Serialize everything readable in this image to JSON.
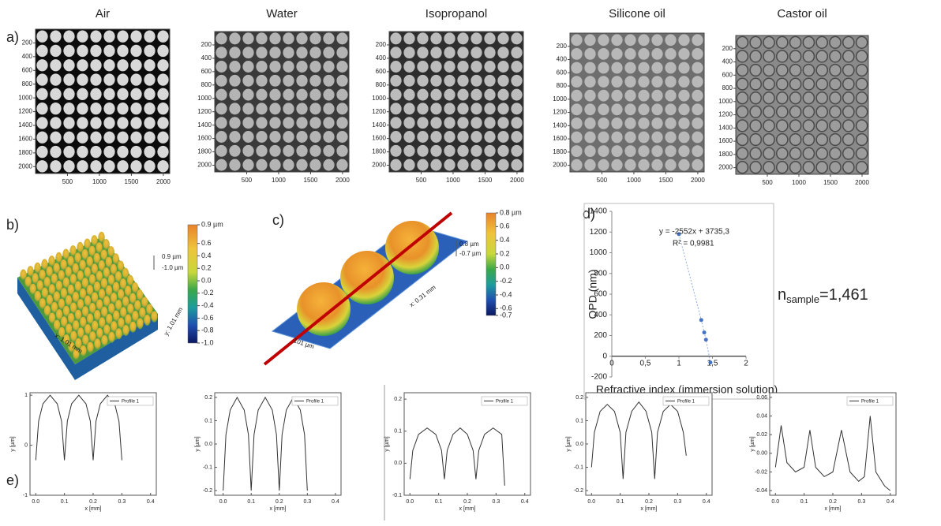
{
  "figure": {
    "panel_labels": [
      "a)",
      "b)",
      "c)",
      "d)",
      "e)"
    ]
  },
  "chart_data": [
    {
      "type": "image",
      "title": "Air",
      "background": "#0c0c0c",
      "dot": "#d8d8d8",
      "xlim": [
        0,
        2100
      ],
      "ylim": [
        0,
        2100
      ],
      "invert_y": true,
      "xticks": [
        500,
        1000,
        1500,
        2000
      ],
      "yticks": [
        200,
        400,
        600,
        800,
        1000,
        1200,
        1400,
        1600,
        1800,
        2000
      ]
    },
    {
      "type": "image",
      "title": "Water",
      "background": "#3a3a3a",
      "dot": "#b4b4b4",
      "xlim": [
        0,
        2100
      ],
      "ylim": [
        0,
        2100
      ],
      "invert_y": true,
      "xticks": [
        500,
        1000,
        1500,
        2000
      ],
      "yticks": [
        200,
        400,
        600,
        800,
        1000,
        1200,
        1400,
        1600,
        1800,
        2000
      ]
    },
    {
      "type": "image",
      "title": "Isopropanol",
      "background": "#2e2e2e",
      "dot": "#bcbcbc",
      "xlim": [
        0,
        2100
      ],
      "ylim": [
        0,
        2100
      ],
      "invert_y": true,
      "xticks": [
        500,
        1000,
        1500,
        2000
      ],
      "yticks": [
        200,
        400,
        600,
        800,
        1000,
        1200,
        1400,
        1600,
        1800,
        2000
      ]
    },
    {
      "type": "image",
      "title": "Silicone oil",
      "background": "#6e6e6e",
      "dot": "#b8b8b8",
      "xlim": [
        0,
        2100
      ],
      "ylim": [
        0,
        2100
      ],
      "invert_y": true,
      "xticks": [
        500,
        1000,
        1500,
        2000
      ],
      "yticks": [
        200,
        400,
        600,
        800,
        1000,
        1200,
        1400,
        1600,
        1800,
        2000
      ]
    },
    {
      "type": "image",
      "title": "Castor oil",
      "background": "#8a8a8a",
      "dot": "#9c9c9c",
      "ring": "#4a4a4a",
      "xlim": [
        0,
        2100
      ],
      "ylim": [
        0,
        2100
      ],
      "invert_y": true,
      "xticks": [
        500,
        1000,
        1500,
        2000
      ],
      "yticks": [
        200,
        400,
        600,
        800,
        1000,
        1200,
        1400,
        1600,
        1800,
        2000
      ]
    },
    {
      "type": "surface3d",
      "clim": [
        -1,
        0.9
      ],
      "colorbar_ticks": [
        {
          "value": 0.9,
          "label": "0.9 µm"
        },
        0.6,
        0.4,
        0.2,
        {
          "value": 0,
          "label": "0.0"
        },
        -0.2,
        -0.4,
        -0.6,
        -0.8,
        {
          "value": -1,
          "label": "-1.0"
        }
      ],
      "annotations": [
        "0.9 µm",
        "-1.0 µm",
        "x: 1.01 mm",
        "y: 1.01 mm"
      ]
    },
    {
      "type": "surface3d",
      "clim": [
        -0.7,
        0.8
      ],
      "colorbar_ticks": [
        {
          "value": 0.8,
          "label": "0.8 µm"
        },
        0.6,
        0.4,
        0.2,
        {
          "value": 0,
          "label": "0.0"
        },
        -0.2,
        -0.4,
        -0.6,
        -0.7
      ],
      "annotations": [
        "0.8 µm",
        "-0.7 µm",
        "x: 0.31 mm",
        "101 µm"
      ]
    },
    {
      "type": "scatter",
      "x_label": "Refractive index (immersion solution)",
      "y_label": "OPD (nm)",
      "x": [
        1,
        1.333,
        1.377,
        1.403,
        1.47
      ],
      "values": [
        1180,
        350,
        230,
        160,
        -60
      ],
      "color": "#4472c4",
      "trend_color": "#8fb0e0",
      "xlim": [
        0,
        2
      ],
      "ylim": [
        -200,
        1400
      ],
      "xticks": [
        0,
        {
          "value": 0.5,
          "label": "0,5"
        },
        1,
        {
          "value": 1.5,
          "label": "1,5"
        },
        2
      ],
      "yticks": [
        -200,
        0,
        200,
        400,
        600,
        800,
        1000,
        1200,
        1400
      ],
      "annotations": [
        "y = -2552x + 3735,3",
        "R² = 0,9981"
      ],
      "result_label": {
        "symbol": "n",
        "subscript": "sample",
        "value_text": "=1,461"
      }
    },
    {
      "type": "line",
      "x_label": "x [mm]",
      "y_label": "y [µm]",
      "xlim": [
        -0.02,
        0.42
      ],
      "ylim": [
        -1,
        1.05
      ],
      "xticks": [
        {
          "value": 0,
          "label": "0.0"
        },
        0.1,
        0.2,
        0.3,
        0.4
      ],
      "yticks": [
        -1,
        0,
        1
      ],
      "series": [
        {
          "name": "Profile 1",
          "color": "#333333",
          "x": [
            0,
            0.01,
            0.025,
            0.05,
            0.075,
            0.09,
            0.1,
            0.11,
            0.125,
            0.15,
            0.175,
            0.19,
            0.2,
            0.21,
            0.225,
            0.25,
            0.275,
            0.29,
            0.3
          ],
          "values": [
            -0.3,
            0.48,
            0.83,
            1.0,
            0.83,
            0.48,
            -0.3,
            0.48,
            0.83,
            1.0,
            0.83,
            0.48,
            -0.3,
            0.48,
            0.83,
            1.0,
            0.83,
            0.48,
            -0.3
          ]
        }
      ]
    },
    {
      "type": "line",
      "x_label": "x [mm]",
      "y_label": "y [µm]",
      "xlim": [
        -0.03,
        0.42
      ],
      "ylim": [
        -0.22,
        0.22
      ],
      "xticks": [
        {
          "value": 0,
          "label": "0.0"
        },
        0.1,
        0.2,
        0.3,
        0.4
      ],
      "yticks": [
        -0.2,
        -0.1,
        {
          "value": 0,
          "label": "0.0"
        },
        0.1,
        0.2
      ],
      "series": [
        {
          "name": "Profile 1",
          "color": "#333333",
          "x": [
            0,
            0.01,
            0.025,
            0.05,
            0.075,
            0.09,
            0.1,
            0.11,
            0.125,
            0.15,
            0.175,
            0.19,
            0.2,
            0.21,
            0.225,
            0.25,
            0.275,
            0.29,
            0.3
          ],
          "values": [
            -0.2,
            0.04,
            0.146,
            0.2,
            0.146,
            0.04,
            -0.2,
            0.04,
            0.146,
            0.2,
            0.146,
            0.04,
            -0.2,
            0.04,
            0.146,
            0.2,
            0.146,
            0.04,
            -0.2
          ]
        }
      ]
    },
    {
      "type": "line",
      "x_label": "x [mm]",
      "y_label": "y [µm]",
      "xlim": [
        -0.02,
        0.42
      ],
      "ylim": [
        -0.1,
        0.22
      ],
      "xticks": [
        {
          "value": 0,
          "label": "0.0"
        },
        0.1,
        0.2,
        0.3,
        0.4
      ],
      "yticks": [
        -0.1,
        {
          "value": 0,
          "label": "0.0"
        },
        0.1,
        0.2
      ],
      "series": [
        {
          "name": "Profile 1",
          "color": "#333333",
          "x": [
            0,
            0.01,
            0.03,
            0.06,
            0.09,
            0.11,
            0.12,
            0.13,
            0.15,
            0.175,
            0.2,
            0.22,
            0.23,
            0.24,
            0.26,
            0.29,
            0.32,
            0.33
          ],
          "values": [
            -0.05,
            0.04,
            0.09,
            0.11,
            0.09,
            0.04,
            -0.05,
            0.04,
            0.09,
            0.11,
            0.09,
            0.04,
            -0.05,
            0.04,
            0.09,
            0.11,
            0.09,
            -0.07
          ]
        }
      ]
    },
    {
      "type": "line",
      "x_label": "x [mm]",
      "y_label": "y [µm]",
      "xlim": [
        -0.02,
        0.42
      ],
      "ylim": [
        -0.22,
        0.22
      ],
      "xticks": [
        {
          "value": 0,
          "label": "0.0"
        },
        0.1,
        0.2,
        0.3,
        0.4
      ],
      "yticks": [
        -0.2,
        -0.1,
        {
          "value": 0,
          "label": "0.0"
        },
        0.1,
        0.2
      ],
      "series": [
        {
          "name": "Profile 1",
          "color": "#333333",
          "x": [
            0,
            0.01,
            0.03,
            0.055,
            0.08,
            0.1,
            0.11,
            0.12,
            0.14,
            0.165,
            0.19,
            0.21,
            0.22,
            0.23,
            0.25,
            0.275,
            0.3,
            0.32,
            0.33
          ],
          "values": [
            -0.1,
            0.05,
            0.14,
            0.17,
            0.14,
            0.05,
            -0.15,
            0.05,
            0.14,
            0.18,
            0.14,
            0.05,
            -0.15,
            0.05,
            0.14,
            0.17,
            0.14,
            0.05,
            -0.05
          ]
        }
      ]
    },
    {
      "type": "line",
      "x_label": "x [mm]",
      "y_label": "y [µm]",
      "xlim": [
        -0.02,
        0.42
      ],
      "ylim": [
        -0.045,
        0.065
      ],
      "xticks": [
        {
          "value": 0,
          "label": "0.0"
        },
        0.1,
        0.2,
        0.3,
        0.4
      ],
      "yticks": [
        {
          "value": -0.04,
          "label": "-0.04"
        },
        {
          "value": -0.02,
          "label": "-0.02"
        },
        {
          "value": 0,
          "label": "0.00"
        },
        {
          "value": 0.02,
          "label": "0.02"
        },
        {
          "value": 0.04,
          "label": "0.04"
        },
        0.06
      ],
      "series": [
        {
          "name": "Profile 1",
          "color": "#333333",
          "x": [
            0,
            0.02,
            0.04,
            0.07,
            0.1,
            0.12,
            0.14,
            0.17,
            0.2,
            0.23,
            0.26,
            0.29,
            0.31,
            0.33,
            0.35,
            0.38,
            0.4
          ],
          "values": [
            -0.015,
            0.03,
            -0.01,
            -0.02,
            -0.015,
            0.025,
            -0.015,
            -0.025,
            -0.02,
            0.025,
            -0.02,
            -0.03,
            -0.025,
            0.04,
            -0.02,
            -0.035,
            -0.04
          ]
        }
      ]
    }
  ]
}
